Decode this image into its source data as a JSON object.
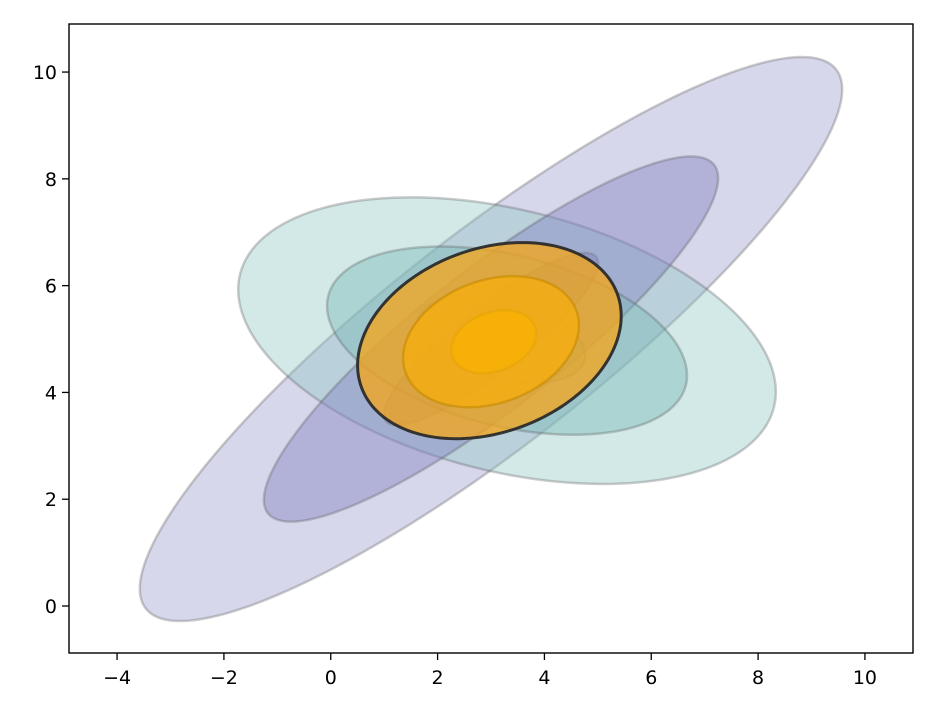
{
  "chart_data": {
    "type": "ellipse_plot",
    "title": "",
    "xlabel": "",
    "ylabel": "",
    "xlim": [
      -4.9,
      10.9
    ],
    "ylim": [
      -0.88,
      10.9
    ],
    "grid": false,
    "x_ticks": [
      -4,
      -2,
      0,
      2,
      4,
      6,
      8,
      10
    ],
    "x_tick_labels": [
      "−4",
      "−2",
      "0",
      "2",
      "4",
      "6",
      "8",
      "10"
    ],
    "y_ticks": [
      0,
      2,
      4,
      6,
      8,
      10
    ],
    "y_tick_labels": [
      "0",
      "2",
      "4",
      "6",
      "8",
      "10"
    ],
    "ellipses": [
      {
        "group": "purple",
        "level": "outer",
        "cx": 3.0,
        "cy": 5.0,
        "semi_major": 8.2,
        "semi_minor": 1.97,
        "angle_deg": 38,
        "fill": "#9a9ace",
        "opacity": 0.4,
        "edge": "#555555",
        "edge_opacity": 0.3
      },
      {
        "group": "teal",
        "level": "outer",
        "cx": 3.3,
        "cy": 4.97,
        "semi_major": 5.15,
        "semi_minor": 2.45,
        "angle_deg": -14,
        "fill": "#8cc6c3",
        "opacity": 0.38,
        "edge": "#555555",
        "edge_opacity": 0.3
      },
      {
        "group": "purple",
        "level": "middle",
        "cx": 3.0,
        "cy": 5.0,
        "semi_major": 5.3,
        "semi_minor": 1.3,
        "angle_deg": 38,
        "fill": "#8585c4",
        "opacity": 0.45,
        "edge": "#555555",
        "edge_opacity": 0.3
      },
      {
        "group": "teal",
        "level": "middle",
        "cx": 3.3,
        "cy": 4.97,
        "semi_major": 3.45,
        "semi_minor": 1.6,
        "angle_deg": -14,
        "fill": "#7abbb8",
        "opacity": 0.45,
        "edge": "#555555",
        "edge_opacity": 0.3
      },
      {
        "group": "purple",
        "level": "inner",
        "cx": 3.0,
        "cy": 5.0,
        "semi_major": 2.5,
        "semi_minor": 0.62,
        "angle_deg": 38,
        "fill": "#7575b8",
        "opacity": 0.35,
        "edge": "#555555",
        "edge_opacity": 0.2
      },
      {
        "group": "teal",
        "level": "inner",
        "cx": 3.2,
        "cy": 5.0,
        "semi_major": 1.6,
        "semi_minor": 0.75,
        "angle_deg": -14,
        "fill": "#6ab0ad",
        "opacity": 0.35,
        "edge": "#555555",
        "edge_opacity": 0.2
      },
      {
        "group": "orange",
        "level": "outer",
        "cx": 2.97,
        "cy": 4.97,
        "semi_major": 2.55,
        "semi_minor": 1.72,
        "angle_deg": 20,
        "fill": "#f2a51c",
        "opacity": 0.78,
        "edge": "#2b2b2b",
        "edge_opacity": 0.95
      },
      {
        "group": "orange",
        "level": "middle",
        "cx": 3.0,
        "cy": 4.95,
        "semi_major": 1.7,
        "semi_minor": 1.15,
        "angle_deg": 20,
        "fill": "#f7ad0e",
        "opacity": 0.75,
        "edge": "#c48a00",
        "edge_opacity": 0.6
      },
      {
        "group": "orange",
        "level": "inner",
        "cx": 3.05,
        "cy": 4.95,
        "semi_major": 0.82,
        "semi_minor": 0.55,
        "angle_deg": 20,
        "fill": "#fbb200",
        "opacity": 0.7,
        "edge": "#e0a000",
        "edge_opacity": 0.4
      }
    ]
  }
}
